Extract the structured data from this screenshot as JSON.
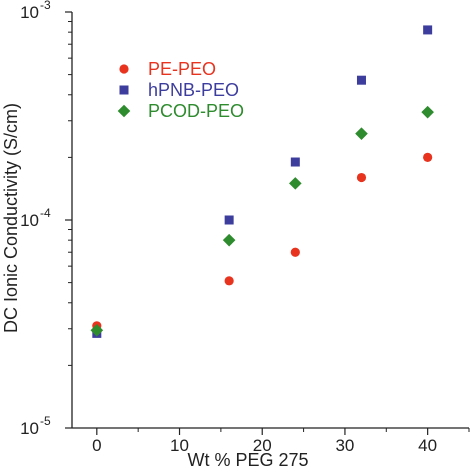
{
  "chart_data": {
    "type": "scatter",
    "title": "",
    "xlabel": "Wt % PEG 275",
    "ylabel": "DC Ionic Conductivity (S/cm)",
    "xlim": [
      -3,
      45
    ],
    "ylim": [
      1e-05,
      0.001
    ],
    "yscale": "log",
    "grid": false,
    "legend_position": "top-left",
    "x_ticks": [
      0,
      10,
      20,
      30,
      40
    ],
    "x_tick_labels": [
      "0",
      "10",
      "20",
      "30",
      "40"
    ],
    "y_tick_labels": [
      {
        "value": 1e-05,
        "base": "10",
        "exp": "-5"
      },
      {
        "value": 0.0001,
        "base": "10",
        "exp": "-4"
      },
      {
        "value": 0.001,
        "base": "10",
        "exp": "-3"
      }
    ],
    "series": [
      {
        "name": "PE-PEO",
        "marker": "circle",
        "color": "#e8331f",
        "points": [
          {
            "x": 0,
            "y": 3.1e-05
          },
          {
            "x": 16,
            "y": 5.1e-05
          },
          {
            "x": 24,
            "y": 7e-05
          },
          {
            "x": 32,
            "y": 0.00016
          },
          {
            "x": 40,
            "y": 0.0002
          }
        ]
      },
      {
        "name": "hPNB-PEO",
        "marker": "square",
        "color": "#3d3d9e",
        "points": [
          {
            "x": 0,
            "y": 2.85e-05
          },
          {
            "x": 16,
            "y": 0.0001
          },
          {
            "x": 24,
            "y": 0.00019
          },
          {
            "x": 32,
            "y": 0.00047
          },
          {
            "x": 40,
            "y": 0.00082
          }
        ]
      },
      {
        "name": "PCOD-PEO",
        "marker": "diamond",
        "color": "#2e8b2e",
        "points": [
          {
            "x": 0,
            "y": 2.95e-05
          },
          {
            "x": 16,
            "y": 8e-05
          },
          {
            "x": 24,
            "y": 0.00015
          },
          {
            "x": 32,
            "y": 0.00026
          },
          {
            "x": 40,
            "y": 0.00033
          }
        ]
      }
    ]
  }
}
